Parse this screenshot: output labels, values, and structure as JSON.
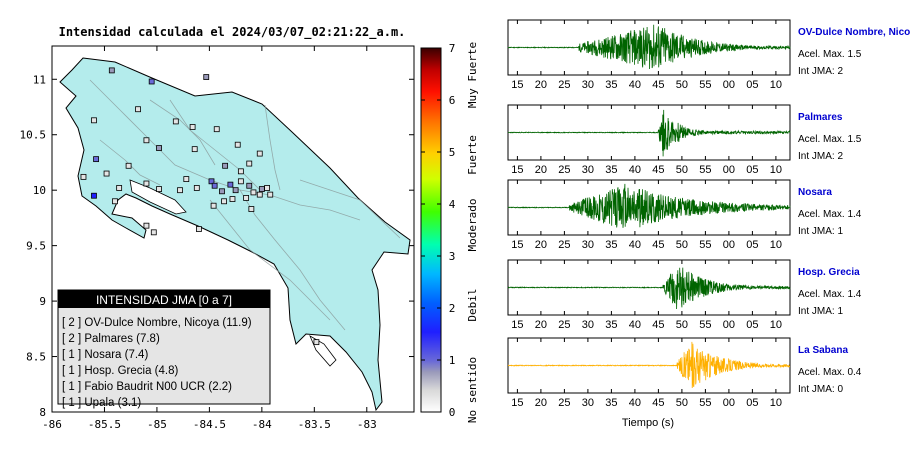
{
  "map": {
    "title": "Intensidad calculada el 2024/03/07_02:21:22_a.m.",
    "xlim": [
      -86,
      -82.55
    ],
    "ylim": [
      8,
      11.3
    ],
    "x_ticks": [
      "-86",
      "-85.5",
      "-85",
      "-84.5",
      "-84",
      "-83.5",
      "-83"
    ],
    "y_ticks": [
      "8",
      "8.5",
      "9",
      "9.5",
      "10",
      "10.5",
      "11"
    ],
    "land_color": "#b4ecec",
    "border_color": "#000000"
  },
  "colorbar": {
    "ticks": [
      "0",
      "1",
      "2",
      "3",
      "4",
      "5",
      "6",
      "7"
    ],
    "labels": [
      "No sentido",
      "Debil",
      "Moderado",
      "Fuerte",
      "Muy Fuerte"
    ]
  },
  "legend": {
    "title": "INTENSIDAD JMA [0 a 7]",
    "entries": [
      {
        "label": "[ 2 ]  OV-Dulce Nombre, Nicoya (11.9)"
      },
      {
        "label": "[ 2 ]  Palmares (7.8)"
      },
      {
        "label": "[ 1 ]  Nosara (7.4)"
      },
      {
        "label": "[ 1 ]  Hosp. Grecia (4.8)"
      },
      {
        "label": "[ 1 ]  Fabio Baudrit N00 UCR (2.2)"
      },
      {
        "label": "[ 1 ]  Upala (3.1)"
      }
    ]
  },
  "chart_data": [
    {
      "type": "scatter",
      "xlim": [
        -86,
        -82.55
      ],
      "ylim": [
        8,
        11.3
      ],
      "points": [
        {
          "x": -85.43,
          "y": 11.08,
          "v": 1
        },
        {
          "x": -85.05,
          "y": 10.98,
          "v": 2
        },
        {
          "x": -84.53,
          "y": 11.02,
          "v": 1
        },
        {
          "x": -85.18,
          "y": 10.73,
          "v": 0
        },
        {
          "x": -84.82,
          "y": 10.62,
          "v": 0
        },
        {
          "x": -84.66,
          "y": 10.57,
          "v": 0
        },
        {
          "x": -84.43,
          "y": 10.55,
          "v": 0
        },
        {
          "x": -85.6,
          "y": 10.63,
          "v": 0
        },
        {
          "x": -85.1,
          "y": 10.45,
          "v": 0
        },
        {
          "x": -84.98,
          "y": 10.38,
          "v": 1
        },
        {
          "x": -84.64,
          "y": 10.37,
          "v": 0
        },
        {
          "x": -84.23,
          "y": 10.41,
          "v": 0
        },
        {
          "x": -84.02,
          "y": 10.33,
          "v": 0
        },
        {
          "x": -85.58,
          "y": 10.28,
          "v": 2
        },
        {
          "x": -85.27,
          "y": 10.22,
          "v": 0
        },
        {
          "x": -85.7,
          "y": 10.12,
          "v": 0
        },
        {
          "x": -85.48,
          "y": 10.15,
          "v": 0
        },
        {
          "x": -85.36,
          "y": 10.02,
          "v": 0
        },
        {
          "x": -85.6,
          "y": 9.95,
          "v": 3
        },
        {
          "x": -85.4,
          "y": 9.9,
          "v": 0
        },
        {
          "x": -85.1,
          "y": 10.06,
          "v": 0
        },
        {
          "x": -84.98,
          "y": 10.01,
          "v": 0
        },
        {
          "x": -84.78,
          "y": 10.0,
          "v": 0
        },
        {
          "x": -84.48,
          "y": 10.08,
          "v": 2
        },
        {
          "x": -84.45,
          "y": 10.04,
          "v": 2
        },
        {
          "x": -84.38,
          "y": 9.99,
          "v": 1
        },
        {
          "x": -84.3,
          "y": 10.05,
          "v": 2
        },
        {
          "x": -84.25,
          "y": 10.0,
          "v": 1
        },
        {
          "x": -84.2,
          "y": 10.08,
          "v": 0
        },
        {
          "x": -84.12,
          "y": 10.04,
          "v": 1
        },
        {
          "x": -84.08,
          "y": 9.98,
          "v": 0
        },
        {
          "x": -84.02,
          "y": 9.96,
          "v": 0
        },
        {
          "x": -84.0,
          "y": 10.01,
          "v": 1
        },
        {
          "x": -84.15,
          "y": 9.93,
          "v": 0
        },
        {
          "x": -84.28,
          "y": 9.92,
          "v": 0
        },
        {
          "x": -84.36,
          "y": 9.9,
          "v": 0
        },
        {
          "x": -84.46,
          "y": 9.86,
          "v": 0
        },
        {
          "x": -83.95,
          "y": 10.02,
          "v": 0
        },
        {
          "x": -83.92,
          "y": 9.96,
          "v": 0
        },
        {
          "x": -84.1,
          "y": 9.83,
          "v": 0
        },
        {
          "x": -84.2,
          "y": 10.17,
          "v": 0
        },
        {
          "x": -84.35,
          "y": 10.22,
          "v": 1
        },
        {
          "x": -84.12,
          "y": 10.24,
          "v": 0
        },
        {
          "x": -85.1,
          "y": 9.68,
          "v": 0
        },
        {
          "x": -85.03,
          "y": 9.62,
          "v": 0
        },
        {
          "x": -84.6,
          "y": 9.65,
          "v": 0
        },
        {
          "x": -84.62,
          "y": 10.02,
          "v": 0
        },
        {
          "x": -84.72,
          "y": 10.1,
          "v": 0
        },
        {
          "x": -83.48,
          "y": 8.63,
          "v": 0
        }
      ]
    },
    {
      "type": "line",
      "xlabel": "Tiempo (s)",
      "x_ticks": [
        "15",
        "20",
        "25",
        "30",
        "35",
        "40",
        "45",
        "50",
        "55",
        "00",
        "05",
        "10"
      ],
      "series": [
        {
          "name": "OV-Dulce Nombre, Nicoya",
          "acel_label": "Acel. Max. 1.5",
          "int_label": "Int JMA: 2",
          "color": "#006400",
          "onset": 28,
          "peak": 45,
          "amp": 1.0,
          "decay": 8,
          "seed": 11
        },
        {
          "name": "Palmares",
          "acel_label": "Acel. Max. 1.5",
          "int_label": "Int JMA: 2",
          "color": "#006400",
          "onset": 45,
          "peak": 46,
          "amp": 1.0,
          "decay": 3.5,
          "seed": 23
        },
        {
          "name": "Nosara",
          "acel_label": "Acel. Max. 1.4",
          "int_label": "Int JMA: 1",
          "color": "#006400",
          "onset": 26,
          "peak": 38,
          "amp": 1.0,
          "decay": 14,
          "seed": 37
        },
        {
          "name": "Hosp. Grecia",
          "acel_label": "Acel. Max. 1.4",
          "int_label": "Int JMA: 1",
          "color": "#006400",
          "onset": 46,
          "peak": 49,
          "amp": 1.0,
          "decay": 6,
          "seed": 51
        },
        {
          "name": "La Sabana",
          "acel_label": "Acel. Max. 0.4",
          "int_label": "Int JMA: 0",
          "color": "#ffb000",
          "onset": 49,
          "peak": 52,
          "amp": 1.0,
          "decay": 6,
          "seed": 67
        }
      ]
    }
  ]
}
